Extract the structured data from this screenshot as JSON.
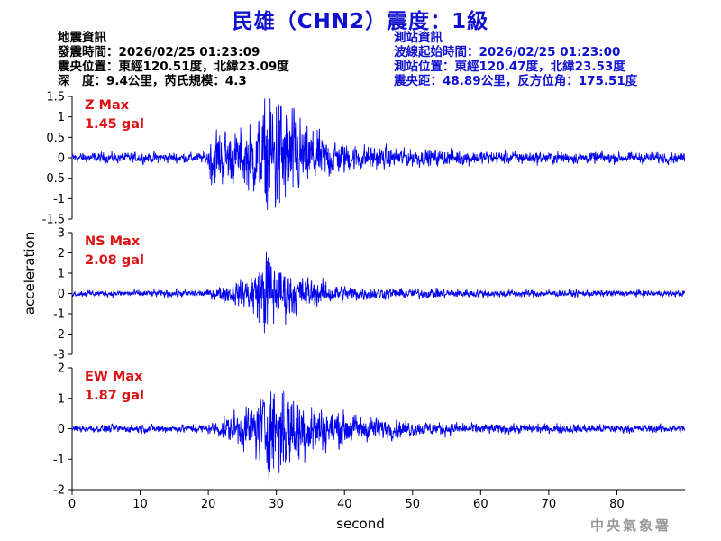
{
  "title": "民雄（CHN2）震度：1級",
  "earthquake_info": {
    "heading": "地震資訊",
    "time": "發震時間：2026/02/25 01:23:09",
    "epicenter": "震央位置：東經120.51度，北緯23.09度",
    "depth_magnitude": "深　度：9.4公里，芮氏規模：4.3"
  },
  "station_info": {
    "heading": "測站資訊",
    "wave_start": "波線起始時間：2026/02/25 01:23:00",
    "location": "測站位置：東經120.47度，北緯23.53度",
    "distance": "震央距：48.89公里，反方位角：175.51度"
  },
  "watermark": "中央氣象署",
  "colors": {
    "title": "#1010d0",
    "trace": "#0000ee",
    "max_label": "#dd1111"
  },
  "chart_data": {
    "type": "line",
    "xlabel": "second",
    "ylabel": "acceleration",
    "xlim": [
      0,
      90
    ],
    "x_ticks": [
      0,
      10,
      20,
      30,
      40,
      50,
      60,
      70,
      80
    ],
    "panels": [
      {
        "name": "Z",
        "max_label": "Z Max",
        "max_value": "1.45 gal",
        "ylim": [
          -1.5,
          1.5
        ],
        "y_ticks": [
          -1.5,
          -1,
          -0.5,
          0,
          0.5,
          1,
          1.5
        ],
        "y_tick_labels": [
          "-1.5",
          "-1",
          "-0.5",
          "0",
          "0.5",
          "1",
          "1.5"
        ],
        "noise": 0.06,
        "envelope": [
          [
            0,
            0.07
          ],
          [
            19.8,
            0.07
          ],
          [
            20.5,
            0.5
          ],
          [
            24,
            0.4
          ],
          [
            27,
            0.6
          ],
          [
            30,
            1.2
          ],
          [
            31.5,
            0.9
          ],
          [
            34,
            0.55
          ],
          [
            37,
            0.35
          ],
          [
            42,
            0.2
          ],
          [
            50,
            0.13
          ],
          [
            60,
            0.1
          ],
          [
            75,
            0.08
          ],
          [
            90,
            0.07
          ]
        ]
      },
      {
        "name": "NS",
        "max_label": "NS Max",
        "max_value": "2.08 gal",
        "ylim": [
          -3,
          3
        ],
        "y_ticks": [
          -3,
          -2,
          -1,
          0,
          1,
          2,
          3
        ],
        "y_tick_labels": [
          "-3",
          "-2",
          "-1",
          "0",
          "1",
          "2",
          "3"
        ],
        "noise": 0.09,
        "envelope": [
          [
            0,
            0.1
          ],
          [
            20,
            0.12
          ],
          [
            22,
            0.3
          ],
          [
            25,
            0.5
          ],
          [
            27.5,
            1.2
          ],
          [
            28.5,
            1.9
          ],
          [
            30,
            1.2
          ],
          [
            33,
            0.8
          ],
          [
            36,
            0.5
          ],
          [
            40,
            0.3
          ],
          [
            47,
            0.2
          ],
          [
            60,
            0.13
          ],
          [
            90,
            0.1
          ]
        ]
      },
      {
        "name": "EW",
        "max_label": "EW Max",
        "max_value": "1.87 gal",
        "ylim": [
          -2,
          2
        ],
        "y_ticks": [
          -2,
          -1,
          0,
          1,
          2
        ],
        "y_tick_labels": [
          "-2",
          "-1",
          "0",
          "1",
          "2"
        ],
        "noise": 0.08,
        "envelope": [
          [
            0,
            0.09
          ],
          [
            20,
            0.12
          ],
          [
            22,
            0.3
          ],
          [
            26,
            0.7
          ],
          [
            28.5,
            1.3
          ],
          [
            30,
            1.75
          ],
          [
            32,
            1.3
          ],
          [
            35,
            0.9
          ],
          [
            38,
            0.6
          ],
          [
            42,
            0.4
          ],
          [
            50,
            0.22
          ],
          [
            60,
            0.14
          ],
          [
            90,
            0.1
          ]
        ]
      }
    ]
  }
}
